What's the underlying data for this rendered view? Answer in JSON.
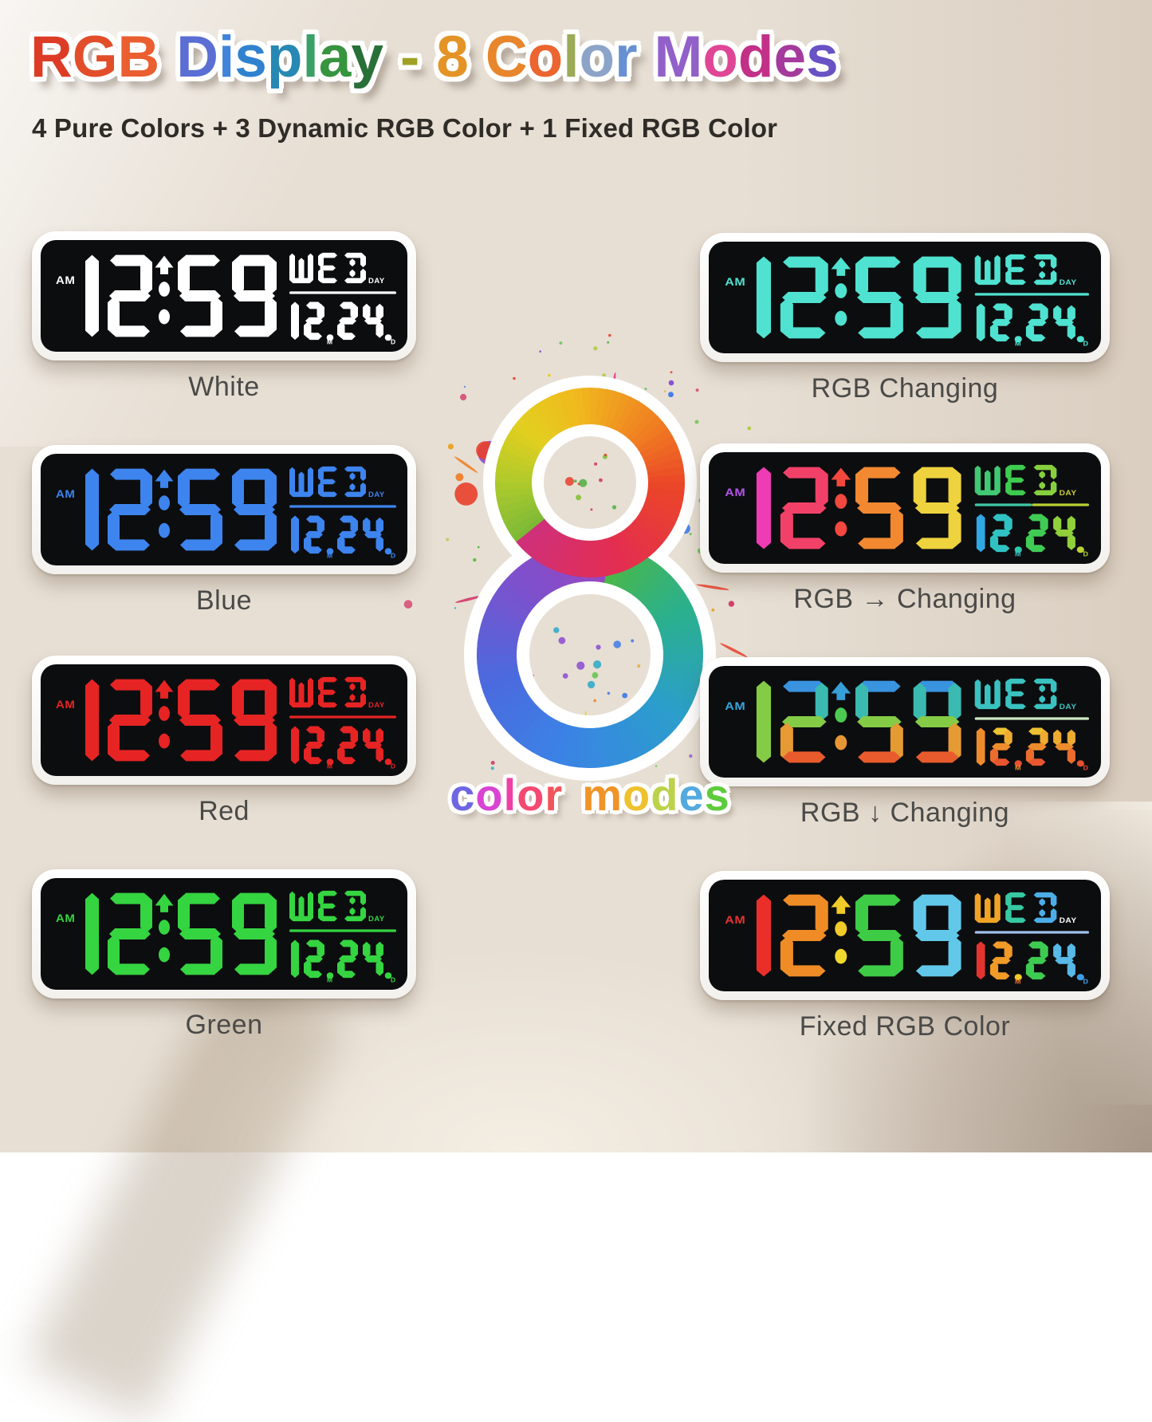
{
  "title": {
    "text": "RGB Display - 8 Color Modes",
    "letters": [
      {
        "ch": "R",
        "color": "#dc3c26"
      },
      {
        "ch": "G",
        "color": "#e24e2a"
      },
      {
        "ch": "B",
        "color": "#ea5e30"
      },
      {
        "ch": " ",
        "color": null
      },
      {
        "ch": "D",
        "color": "#5a6ed4"
      },
      {
        "ch": "i",
        "color": "#3f84da"
      },
      {
        "ch": "s",
        "color": "#3082ce"
      },
      {
        "ch": "p",
        "color": "#2788b4"
      },
      {
        "ch": "l",
        "color": "#3aa068"
      },
      {
        "ch": "a",
        "color": "#37943f"
      },
      {
        "ch": "y",
        "color": "#287038"
      },
      {
        "ch": " ",
        "color": null
      },
      {
        "ch": "-",
        "color": "#a0a024"
      },
      {
        "ch": " ",
        "color": null
      },
      {
        "ch": "8",
        "color": "#e49426"
      },
      {
        "ch": " ",
        "color": null
      },
      {
        "ch": "C",
        "color": "#e8862c"
      },
      {
        "ch": "o",
        "color": "#ec6430"
      },
      {
        "ch": "l",
        "color": "#9cab57"
      },
      {
        "ch": "o",
        "color": "#8ca4c8"
      },
      {
        "ch": "r",
        "color": "#6690d2"
      },
      {
        "ch": " ",
        "color": null
      },
      {
        "ch": "M",
        "color": "#9160c8"
      },
      {
        "ch": "o",
        "color": "#e04696"
      },
      {
        "ch": "d",
        "color": "#c23088"
      },
      {
        "ch": "e",
        "color": "#a43a9c"
      },
      {
        "ch": "s",
        "color": "#6852c4"
      }
    ]
  },
  "subtitle": "4 Pure Colors + 3 Dynamic RGB Color + 1 Fixed RGB Color",
  "display": {
    "am": "AM",
    "time": "12:59",
    "weekday": "WED",
    "day_label": "DAY",
    "date": "12.24.",
    "month_label": "M",
    "date_day_label": "D"
  },
  "clocks": [
    {
      "id": "white",
      "label": "White",
      "scheme": {
        "type": "solid",
        "color": "#ffffff"
      }
    },
    {
      "id": "rgb-changing",
      "label": "RGB Changing",
      "scheme": {
        "type": "solid",
        "color": "#4fe2d0"
      }
    },
    {
      "id": "blue",
      "label": "Blue",
      "scheme": {
        "type": "solid",
        "color": "#3d84ee"
      }
    },
    {
      "id": "rgb-horizontal-changing",
      "label": "RGB → Changing",
      "scheme": {
        "type": "per-glyph",
        "glyphs": {
          "am": "#b354ea",
          "h1": "#ee3cb4",
          "h2": "#f24168",
          "arrow": "#f2483e",
          "dot1": "#f2483e",
          "dot2": "#f2483e",
          "m1": "#f28830",
          "m2": "#eed23e",
          "w": "#40c872",
          "e": "#3ecc50",
          "d": "#86d03e",
          "day": "#c8cc30",
          "divider": "#3ec8a4",
          "divider2": "#bcd034",
          "dd1": "#30a8e4",
          "dd2": "#30c2c2",
          "ddot1": "#30c8aa",
          "dd3": "#40cc54",
          "dd4": "#90d03a",
          "ddot2": "#bad034",
          "mlabel": "#30c2c2",
          "dlabel": "#aad036"
        }
      }
    },
    {
      "id": "red",
      "label": "Red",
      "scheme": {
        "type": "solid",
        "color": "#e62424"
      }
    },
    {
      "id": "rgb-vertical-changing",
      "label": "RGB ↓ Changing",
      "scheme": {
        "type": "vertical",
        "stops": [
          [
            0,
            "#3b7eec"
          ],
          [
            0.22,
            "#35b6c8"
          ],
          [
            0.42,
            "#4ecb4e"
          ],
          [
            0.6,
            "#d5cc3a"
          ],
          [
            0.78,
            "#ec8430"
          ],
          [
            1,
            "#e63a28"
          ]
        ],
        "date_stops": [
          [
            0,
            "#ecd234"
          ],
          [
            0.5,
            "#ee8c2c"
          ],
          [
            1,
            "#e64430"
          ]
        ],
        "overrides": {
          "am": "#35a8dc",
          "w": "#3ac2c0",
          "e": "#3ac2c0",
          "d": "#3ac2c0",
          "day": "#3ac2c0",
          "divider": "#cfe8c2",
          "mlabel": "#ee8c2c",
          "dlabel": "#e64430"
        }
      }
    },
    {
      "id": "green",
      "label": "Green",
      "scheme": {
        "type": "solid",
        "color": "#35d441"
      }
    },
    {
      "id": "fixed-rgb",
      "label": "Fixed RGB Color",
      "scheme": {
        "type": "per-glyph",
        "glyphs": {
          "am": "#e43430",
          "h1": "#ea2f2a",
          "h2": "#f08c26",
          "arrow": "#f0ca28",
          "dot1": "#f0ca28",
          "dot2": "#f0d82e",
          "m1": "#3ecb46",
          "m2": "#62c8ea",
          "w": "#f0a426",
          "e": "#36c9a2",
          "d": "#4caee8",
          "day": "#ffffff",
          "divider": "#9fc0ea",
          "dd1": "#e43430",
          "dd2": "#f09a28",
          "ddot1": "#f0ca28",
          "dd3": "#3ecb52",
          "dd4": "#58b8e6",
          "ddot2": "#3e9ce6",
          "mlabel": "#ee7030",
          "dlabel": "#3e9ce6"
        }
      }
    }
  ],
  "center_badge": {
    "number": "8",
    "caption": "color modes",
    "caption_letters": [
      {
        "ch": "c",
        "color": "#6f66e2"
      },
      {
        "ch": "o",
        "color": "#d944d2"
      },
      {
        "ch": "l",
        "color": "#ef3fa6"
      },
      {
        "ch": "o",
        "color": "#f44a72"
      },
      {
        "ch": "r",
        "color": "#f2545c"
      },
      {
        "ch": " ",
        "color": null
      },
      {
        "ch": "m",
        "color": "#f09428"
      },
      {
        "ch": "o",
        "color": "#eec22e"
      },
      {
        "ch": "d",
        "color": "#bcd24c"
      },
      {
        "ch": "e",
        "color": "#52aade"
      },
      {
        "ch": "s",
        "color": "#5ecb3c"
      }
    ],
    "eight_top_stops": [
      [
        0,
        "#7ab838"
      ],
      [
        0.1,
        "#a9c92c"
      ],
      [
        0.22,
        "#e3cf1f"
      ],
      [
        0.34,
        "#f0b81e"
      ],
      [
        0.5,
        "#f07c22"
      ],
      [
        0.62,
        "#ea4528"
      ],
      [
        0.8,
        "#e42e50"
      ],
      [
        1,
        "#cf2f7a"
      ]
    ],
    "eight_bottom_stops": [
      [
        0,
        "#4cb844"
      ],
      [
        0.15,
        "#2bb08e"
      ],
      [
        0.32,
        "#2b9ecb"
      ],
      [
        0.52,
        "#3b82e6"
      ],
      [
        0.68,
        "#4b6ade"
      ],
      [
        0.85,
        "#7e50cc"
      ],
      [
        1,
        "#9747c2"
      ]
    ],
    "splatter_palette": [
      "#e8a51e",
      "#e6cf1f",
      "#a9c92c",
      "#49b83c",
      "#e8402a",
      "#e02d88",
      "#8a4ad2",
      "#3f7ae6",
      "#2aa8c8",
      "#ef7b24",
      "#d22f62",
      "#62c24a"
    ]
  },
  "colors": {
    "background": "#e7dfd4",
    "screen": "#0c0d0f",
    "bezel": "#fbfaf8",
    "label_text": "#4a4a48",
    "subtitle_text": "#2f2c28"
  }
}
